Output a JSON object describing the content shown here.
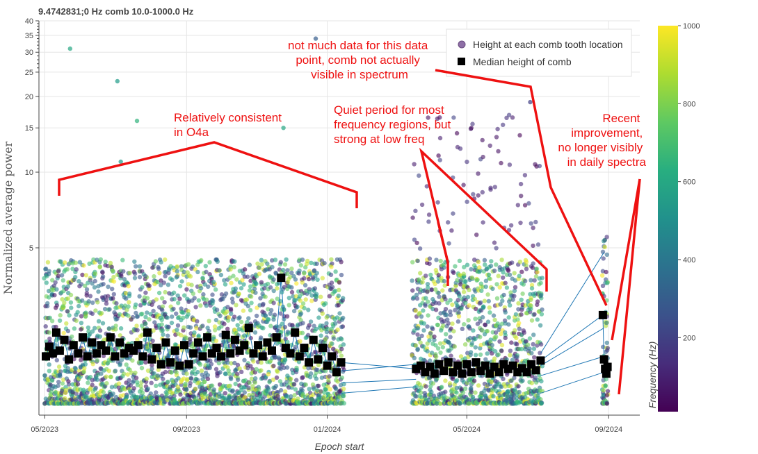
{
  "chart_data": {
    "type": "scatter",
    "title": "9.4742831;0 Hz comb 10.0-1000.0 Hz",
    "xlabel": "Epoch start",
    "ylabel": "Normalized average power",
    "yscale": "log",
    "ylim": [
      1.08,
      40
    ],
    "xlim": [
      "2023-04-26",
      "2024-09-28"
    ],
    "x_ticks": [
      {
        "date": "2023-05-01",
        "label": "05/2023"
      },
      {
        "date": "2023-09-01",
        "label": "09/2023"
      },
      {
        "date": "2024-01-01",
        "label": "01/2024"
      },
      {
        "date": "2024-05-01",
        "label": "05/2024"
      },
      {
        "date": "2024-09-01",
        "label": "09/2024"
      }
    ],
    "y_ticks": [
      {
        "value": 5,
        "label": "5"
      },
      {
        "value": 10,
        "label": "10"
      },
      {
        "value": 15,
        "label": "15"
      },
      {
        "value": 20,
        "label": "20"
      },
      {
        "value": 25,
        "label": "25"
      },
      {
        "value": 30,
        "label": "30"
      },
      {
        "value": 35,
        "label": "35"
      },
      {
        "value": 40,
        "label": "40"
      }
    ],
    "grid": true,
    "legend": {
      "position": "top-right",
      "entries": [
        {
          "name": "Height at each comb tooth location",
          "marker": "circle",
          "color": "#8e6fa6"
        },
        {
          "name": "Median height of comb",
          "marker": "square",
          "color": "#000000"
        }
      ]
    },
    "colorbar": {
      "label": "Frequency (Hz)",
      "range": [
        10,
        1000
      ],
      "ticks": [
        200,
        400,
        600,
        800,
        1000
      ],
      "colormap": "viridis"
    },
    "series": [
      {
        "name": "Median height of comb",
        "marker": "square",
        "points": [
          {
            "date": "2023-05-02",
            "y": 1.85
          },
          {
            "date": "2023-05-05",
            "y": 2.02
          },
          {
            "date": "2023-05-08",
            "y": 1.9
          },
          {
            "date": "2023-05-11",
            "y": 2.3
          },
          {
            "date": "2023-05-14",
            "y": 1.95
          },
          {
            "date": "2023-05-18",
            "y": 2.15
          },
          {
            "date": "2023-05-22",
            "y": 1.8
          },
          {
            "date": "2023-05-26",
            "y": 2.05
          },
          {
            "date": "2023-05-30",
            "y": 1.9
          },
          {
            "date": "2023-06-03",
            "y": 2.2
          },
          {
            "date": "2023-06-07",
            "y": 1.85
          },
          {
            "date": "2023-06-11",
            "y": 2.1
          },
          {
            "date": "2023-06-15",
            "y": 1.9
          },
          {
            "date": "2023-06-19",
            "y": 2.05
          },
          {
            "date": "2023-06-23",
            "y": 1.95
          },
          {
            "date": "2023-06-27",
            "y": 2.2
          },
          {
            "date": "2023-07-01",
            "y": 1.85
          },
          {
            "date": "2023-07-05",
            "y": 2.1
          },
          {
            "date": "2023-07-09",
            "y": 1.9
          },
          {
            "date": "2023-07-13",
            "y": 2.0
          },
          {
            "date": "2023-07-17",
            "y": 1.95
          },
          {
            "date": "2023-07-21",
            "y": 2.05
          },
          {
            "date": "2023-07-25",
            "y": 1.85
          },
          {
            "date": "2023-07-29",
            "y": 2.3
          },
          {
            "date": "2023-08-02",
            "y": 1.8
          },
          {
            "date": "2023-08-06",
            "y": 2.0
          },
          {
            "date": "2023-08-10",
            "y": 1.72
          },
          {
            "date": "2023-08-14",
            "y": 2.1
          },
          {
            "date": "2023-08-18",
            "y": 1.75
          },
          {
            "date": "2023-08-22",
            "y": 1.95
          },
          {
            "date": "2023-08-26",
            "y": 1.7
          },
          {
            "date": "2023-08-30",
            "y": 2.05
          },
          {
            "date": "2023-09-03",
            "y": 1.72
          },
          {
            "date": "2023-09-07",
            "y": 1.9
          },
          {
            "date": "2023-09-11",
            "y": 2.1
          },
          {
            "date": "2023-09-15",
            "y": 1.85
          },
          {
            "date": "2023-09-19",
            "y": 2.2
          },
          {
            "date": "2023-09-23",
            "y": 1.9
          },
          {
            "date": "2023-09-27",
            "y": 2.0
          },
          {
            "date": "2023-10-01",
            "y": 1.85
          },
          {
            "date": "2023-10-05",
            "y": 2.25
          },
          {
            "date": "2023-10-09",
            "y": 1.9
          },
          {
            "date": "2023-10-13",
            "y": 2.15
          },
          {
            "date": "2023-10-17",
            "y": 1.95
          },
          {
            "date": "2023-10-21",
            "y": 2.05
          },
          {
            "date": "2023-10-25",
            "y": 2.4
          },
          {
            "date": "2023-10-29",
            "y": 1.9
          },
          {
            "date": "2023-11-02",
            "y": 2.05
          },
          {
            "date": "2023-11-06",
            "y": 1.85
          },
          {
            "date": "2023-11-10",
            "y": 2.1
          },
          {
            "date": "2023-11-14",
            "y": 1.95
          },
          {
            "date": "2023-11-18",
            "y": 2.2
          },
          {
            "date": "2023-11-22",
            "y": 3.8
          },
          {
            "date": "2023-11-26",
            "y": 2.0
          },
          {
            "date": "2023-11-30",
            "y": 1.9
          },
          {
            "date": "2023-12-04",
            "y": 2.3
          },
          {
            "date": "2023-12-08",
            "y": 1.85
          },
          {
            "date": "2023-12-12",
            "y": 2.0
          },
          {
            "date": "2023-12-16",
            "y": 1.75
          },
          {
            "date": "2023-12-20",
            "y": 2.15
          },
          {
            "date": "2023-12-24",
            "y": 1.8
          },
          {
            "date": "2023-12-28",
            "y": 2.0
          },
          {
            "date": "2024-01-01",
            "y": 1.7
          },
          {
            "date": "2024-01-05",
            "y": 1.85
          },
          {
            "date": "2024-01-09",
            "y": 1.6
          },
          {
            "date": "2024-01-13",
            "y": 1.75
          },
          {
            "date": "2024-03-18",
            "y": 1.65
          },
          {
            "date": "2024-03-22",
            "y": 1.7
          },
          {
            "date": "2024-03-26",
            "y": 1.6
          },
          {
            "date": "2024-03-30",
            "y": 1.68
          },
          {
            "date": "2024-04-03",
            "y": 1.58
          },
          {
            "date": "2024-04-07",
            "y": 1.72
          },
          {
            "date": "2024-04-11",
            "y": 1.62
          },
          {
            "date": "2024-04-15",
            "y": 1.75
          },
          {
            "date": "2024-04-19",
            "y": 1.6
          },
          {
            "date": "2024-04-23",
            "y": 1.7
          },
          {
            "date": "2024-04-27",
            "y": 1.58
          },
          {
            "date": "2024-05-01",
            "y": 1.72
          },
          {
            "date": "2024-05-05",
            "y": 1.6
          },
          {
            "date": "2024-05-09",
            "y": 1.75
          },
          {
            "date": "2024-05-13",
            "y": 1.62
          },
          {
            "date": "2024-05-17",
            "y": 1.7
          },
          {
            "date": "2024-05-21",
            "y": 1.58
          },
          {
            "date": "2024-05-25",
            "y": 1.68
          },
          {
            "date": "2024-05-29",
            "y": 1.6
          },
          {
            "date": "2024-06-02",
            "y": 1.72
          },
          {
            "date": "2024-06-06",
            "y": 1.65
          },
          {
            "date": "2024-06-10",
            "y": 1.7
          },
          {
            "date": "2024-06-14",
            "y": 1.6
          },
          {
            "date": "2024-06-18",
            "y": 1.66
          },
          {
            "date": "2024-06-22",
            "y": 1.6
          },
          {
            "date": "2024-06-26",
            "y": 1.72
          },
          {
            "date": "2024-06-30",
            "y": 1.63
          },
          {
            "date": "2024-07-04",
            "y": 1.78
          },
          {
            "date": "2024-08-27",
            "y": 2.7
          },
          {
            "date": "2024-08-28",
            "y": 1.8
          },
          {
            "date": "2024-08-29",
            "y": 1.65
          },
          {
            "date": "2024-08-30",
            "y": 1.58
          },
          {
            "date": "2024-08-31",
            "y": 1.68
          }
        ]
      }
    ],
    "scatter_summary": {
      "name": "Height at each comb tooth location",
      "color_by": "Frequency (Hz)",
      "segments": [
        {
          "start": "2023-05-01",
          "end": "2024-01-15",
          "low": 1.2,
          "high": 4.5
        },
        {
          "start": "2024-03-15",
          "end": "2024-07-05",
          "low": 1.2,
          "high": 17
        },
        {
          "start": "2024-08-27",
          "end": "2024-08-31",
          "low": 1.2,
          "high": 5.6
        }
      ],
      "outliers": [
        {
          "date": "2023-05-23",
          "y": 31,
          "freq": 600
        },
        {
          "date": "2023-07-03",
          "y": 23,
          "freq": 550
        },
        {
          "date": "2023-07-20",
          "y": 16,
          "freq": 650
        },
        {
          "date": "2023-07-06",
          "y": 11,
          "freq": 550
        },
        {
          "date": "2023-11-24",
          "y": 15,
          "freq": 600
        },
        {
          "date": "2023-12-22",
          "y": 34,
          "freq": 300
        },
        {
          "date": "2024-06-25",
          "y": 19,
          "freq": 200
        }
      ]
    },
    "annotations": [
      {
        "lines": [
          "Relatively consistent",
          "in O4a"
        ]
      },
      {
        "lines": [
          "Quiet  period for most",
          "frequency regions, but",
          "strong at low freq"
        ]
      },
      {
        "lines": [
          "not much data for this data",
          "point, comb not actually",
          "visible in spectrum"
        ]
      },
      {
        "lines": [
          "Recent",
          "improvement,",
          "no longer visibly",
          "in daily spectra"
        ]
      }
    ],
    "colors": {
      "annotation": "#ee1111",
      "line": "#1f77b4",
      "grid": "#e5e5e5"
    }
  }
}
